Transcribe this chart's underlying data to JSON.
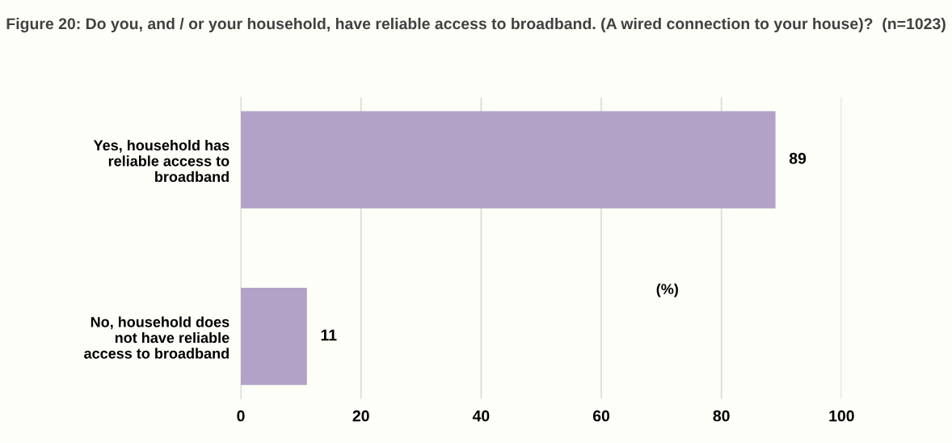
{
  "chart_data": {
    "type": "bar",
    "orientation": "horizontal",
    "title": "Figure 20: Do you, and / or your household, have reliable access to broadband. (A wired connection to your house)?  (n=1023)",
    "categories": [
      "Yes, household has\nreliable access to\nbroadband",
      "No, household does\nnot have reliable\naccess to broadband"
    ],
    "values": [
      89,
      11
    ],
    "color": "#b2a2c7",
    "xlim": [
      0,
      100
    ],
    "xticks": [
      0,
      20,
      40,
      60,
      80,
      100
    ],
    "grid": "x",
    "data_labels": true,
    "annotations": [
      "(%)"
    ]
  }
}
